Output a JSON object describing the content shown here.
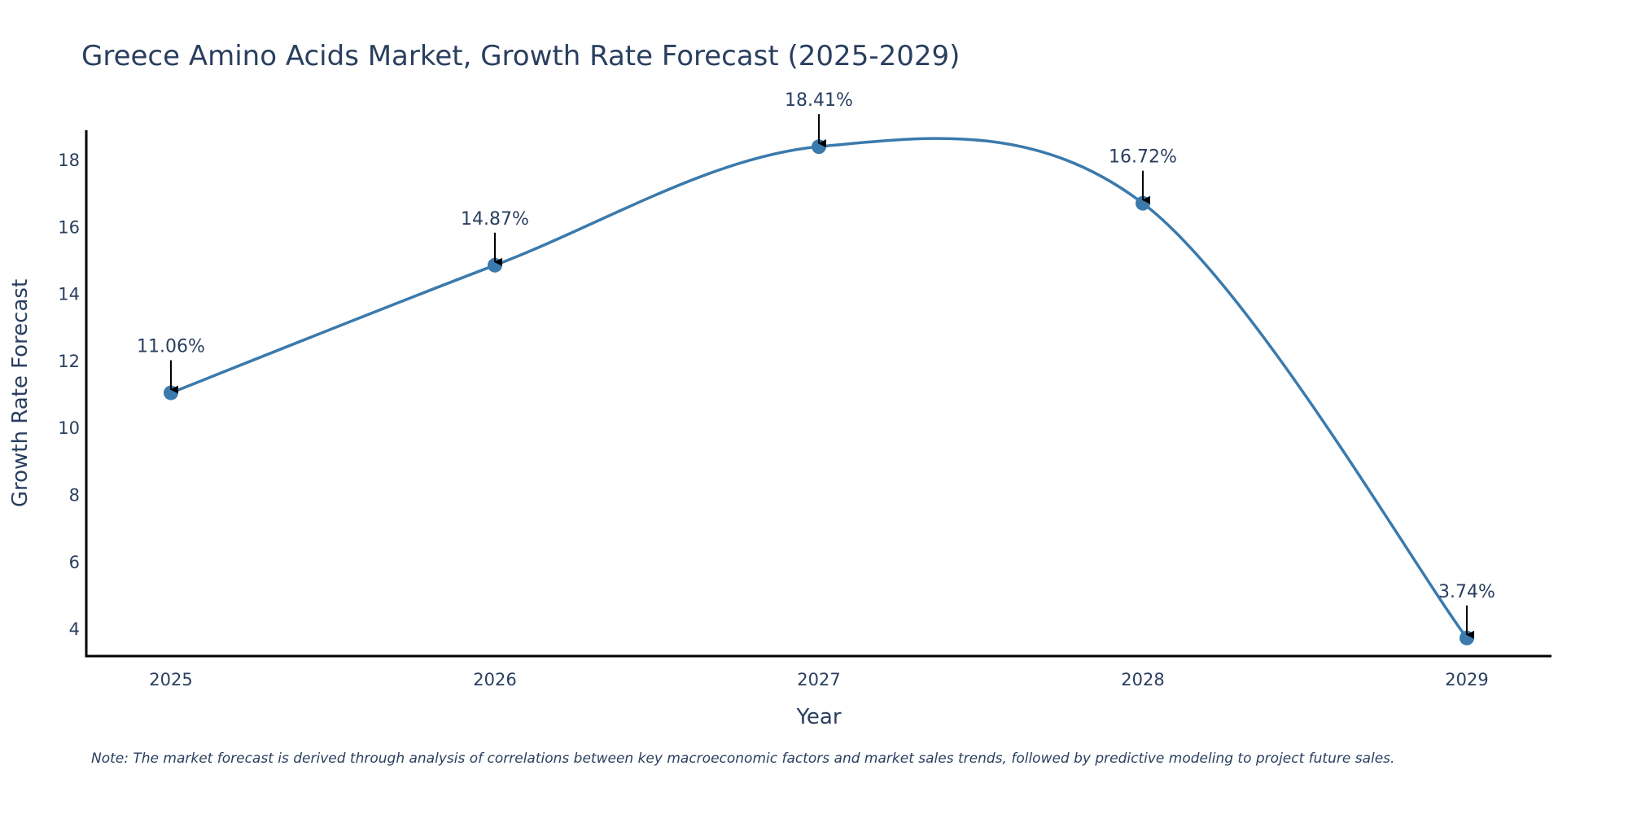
{
  "chart_data": {
    "type": "line",
    "title": "Greece Amino Acids Market, Growth Rate Forecast (2025-2029)",
    "xlabel": "Year",
    "ylabel": "Growth Rate Forecast",
    "categories": [
      "2025",
      "2026",
      "2027",
      "2028",
      "2029"
    ],
    "series": [
      {
        "name": "Growth Rate Forecast",
        "values": [
          11.06,
          14.87,
          18.41,
          16.72,
          3.74
        ],
        "color": "#3a7aad",
        "smoothing": "spline"
      }
    ],
    "annotations": [
      "11.06%",
      "14.87%",
      "18.41%",
      "16.72%",
      "3.74%"
    ],
    "yticks": [
      4,
      6,
      8,
      10,
      12,
      14,
      16,
      18
    ],
    "ylim": [
      3.2,
      18.9
    ],
    "grid": false,
    "note": "Note: The market forecast is derived through analysis of correlations between key macroeconomic factors and market sales trends, followed by predictive modeling to project future sales."
  }
}
